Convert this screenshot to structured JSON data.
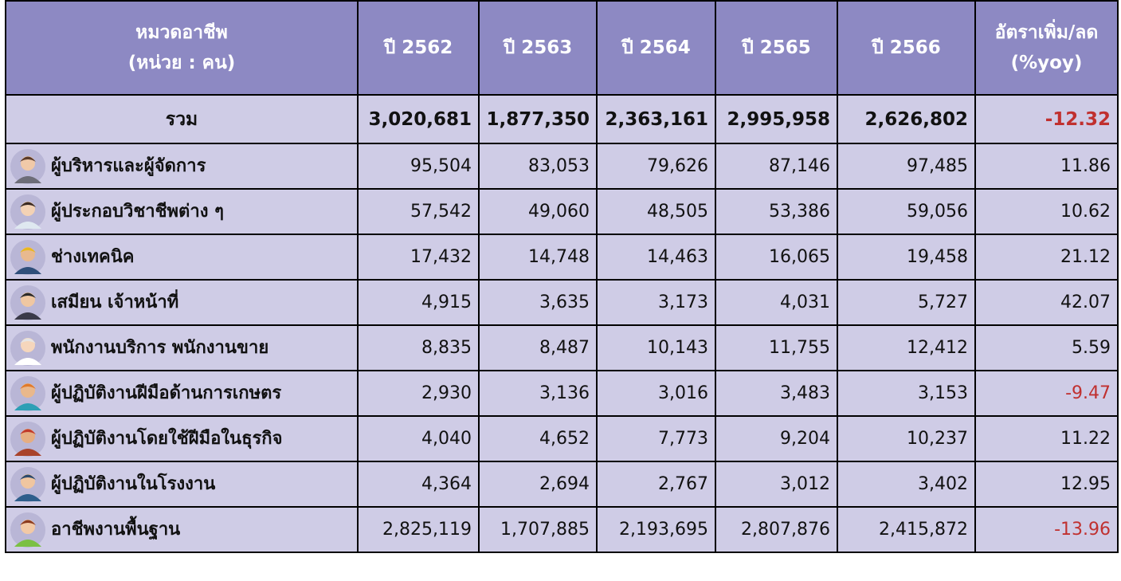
{
  "table": {
    "header": [
      [
        "หมวดอาชีพ",
        "(หน่วย : คน)"
      ],
      [
        "ปี 2562"
      ],
      [
        "ปี 2563"
      ],
      [
        "ปี 2564"
      ],
      [
        "ปี 2565"
      ],
      [
        "ปี 2566"
      ],
      [
        "อัตราเพิ่ม/ลด",
        "(%yoy)"
      ]
    ],
    "total": [
      "รวม",
      "3,020,681",
      "1,877,350",
      "2,363,161",
      "2,995,958",
      "2,626,802",
      "-12.32"
    ],
    "rows": [
      [
        "ผู้บริหารและผู้จัดการ",
        "95,504",
        "83,053",
        "79,626",
        "87,146",
        "97,485",
        "11.86"
      ],
      [
        "ผู้ประกอบวิชาชีพต่าง ๆ",
        "57,542",
        "49,060",
        "48,505",
        "53,386",
        "59,056",
        "10.62"
      ],
      [
        "ช่างเทคนิค",
        "17,432",
        "14,748",
        "14,463",
        "16,065",
        "19,458",
        "21.12"
      ],
      [
        "เสมียน เจ้าหน้าที่",
        "4,915",
        "3,635",
        "3,173",
        "4,031",
        "5,727",
        "42.07"
      ],
      [
        "พนักงานบริการ พนักงานขาย",
        "8,835",
        "8,487",
        "10,143",
        "11,755",
        "12,412",
        "5.59"
      ],
      [
        "ผู้ปฏิบัติงานฝีมือด้านการเกษตร",
        "2,930",
        "3,136",
        "3,016",
        "3,483",
        "3,153",
        "-9.47"
      ],
      [
        "ผู้ปฏิบัติงานโดยใช้ฝีมือในธุรกิจ",
        "4,040",
        "4,652",
        "7,773",
        "9,204",
        "10,237",
        "11.22"
      ],
      [
        "ผู้ปฏิบัติงานในโรงงาน",
        "4,364",
        "2,694",
        "2,767",
        "3,012",
        "3,402",
        "12.95"
      ],
      [
        "อาชีพงานพื้นฐาน",
        "2,825,119",
        "1,707,885",
        "2,193,695",
        "2,807,876",
        "2,415,872",
        "-13.96"
      ]
    ]
  }
}
